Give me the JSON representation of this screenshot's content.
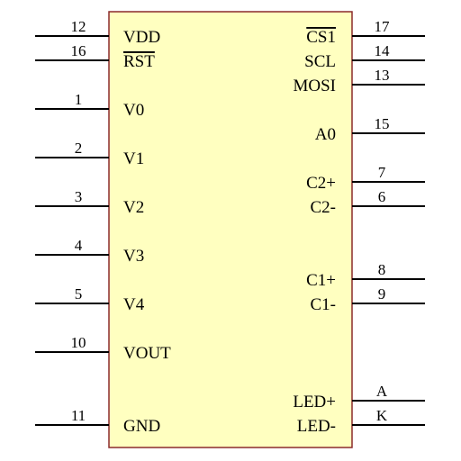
{
  "component": {
    "body_fill": "#ffffc0",
    "body_stroke": "#8b2a2a",
    "wire_color": "#000000"
  },
  "left_pins": [
    {
      "number": "12",
      "label": "VDD",
      "overbar": false
    },
    {
      "number": "16",
      "label": "RST",
      "overbar": true
    },
    {
      "number": "1",
      "label": "V0",
      "overbar": false
    },
    {
      "number": "2",
      "label": "V1",
      "overbar": false
    },
    {
      "number": "3",
      "label": "V2",
      "overbar": false
    },
    {
      "number": "4",
      "label": "V3",
      "overbar": false
    },
    {
      "number": "5",
      "label": "V4",
      "overbar": false
    },
    {
      "number": "10",
      "label": "VOUT",
      "overbar": false
    },
    {
      "number": "11",
      "label": "GND",
      "overbar": false
    }
  ],
  "right_pins": [
    {
      "number": "17",
      "label": "CS1",
      "overbar": true
    },
    {
      "number": "14",
      "label": "SCL",
      "overbar": false
    },
    {
      "number": "13",
      "label": "MOSI",
      "overbar": false
    },
    {
      "number": "15",
      "label": "A0",
      "overbar": false
    },
    {
      "number": "7",
      "label": "C2+",
      "overbar": false
    },
    {
      "number": "6",
      "label": "C2-",
      "overbar": false
    },
    {
      "number": "8",
      "label": "C1+",
      "overbar": false
    },
    {
      "number": "9",
      "label": "C1-",
      "overbar": false
    },
    {
      "number": "A",
      "label": "LED+",
      "overbar": false
    },
    {
      "number": "K",
      "label": "LED-",
      "overbar": false
    }
  ]
}
